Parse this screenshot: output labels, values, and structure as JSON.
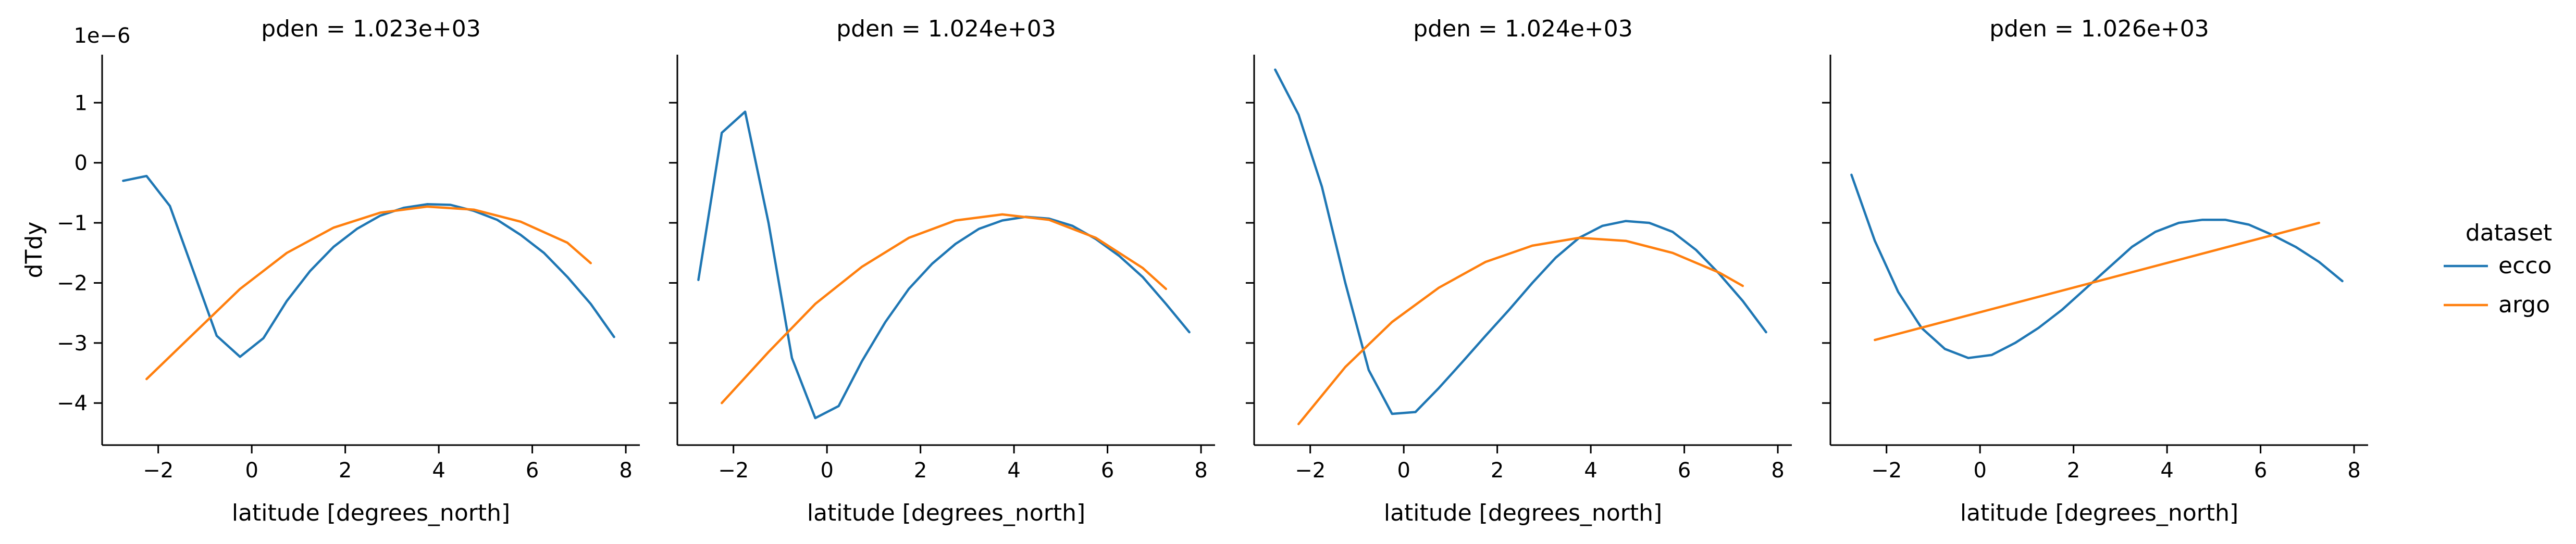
{
  "chart_data": {
    "type": "line",
    "y_scale_label": "1e−6",
    "ylabel": "dTdy",
    "xlabel": "latitude [degrees_north]",
    "xlim": [
      -3.2,
      8.3
    ],
    "ylim": [
      -4.7,
      1.8
    ],
    "x_ticks": [
      -2,
      0,
      2,
      4,
      6,
      8
    ],
    "y_ticks": [
      1,
      0,
      -1,
      -2,
      -3,
      -4
    ],
    "legend": {
      "title": "dataset",
      "placement": "right",
      "entries": [
        "ecco",
        "argo"
      ]
    },
    "colors": {
      "ecco": "#1f77b4",
      "argo": "#ff7f0e"
    },
    "panels": [
      {
        "title": "pden = 1.023e+03",
        "series": [
          {
            "name": "ecco",
            "x": [
              -2.75,
              -2.25,
              -1.75,
              -1.25,
              -0.75,
              -0.25,
              0.25,
              0.75,
              1.25,
              1.75,
              2.25,
              2.75,
              3.25,
              3.75,
              4.25,
              4.75,
              5.25,
              5.75,
              6.25,
              6.75,
              7.25,
              7.75
            ],
            "y": [
              -0.3,
              -0.22,
              -0.72,
              -1.8,
              -2.88,
              -3.23,
              -2.92,
              -2.3,
              -1.8,
              -1.4,
              -1.1,
              -0.88,
              -0.75,
              -0.69,
              -0.7,
              -0.8,
              -0.95,
              -1.2,
              -1.5,
              -1.9,
              -2.35,
              -2.9
            ]
          },
          {
            "name": "argo",
            "x": [
              -2.25,
              -1.25,
              -0.25,
              0.75,
              1.75,
              2.75,
              3.75,
              4.75,
              5.75,
              6.75,
              7.25
            ],
            "y": [
              -3.6,
              -2.85,
              -2.1,
              -1.5,
              -1.08,
              -0.83,
              -0.73,
              -0.78,
              -0.98,
              -1.33,
              -1.67
            ]
          }
        ]
      },
      {
        "title": "pden = 1.024e+03",
        "series": [
          {
            "name": "ecco",
            "x": [
              -2.75,
              -2.25,
              -1.75,
              -1.25,
              -0.75,
              -0.25,
              0.25,
              0.75,
              1.25,
              1.75,
              2.25,
              2.75,
              3.25,
              3.75,
              4.25,
              4.75,
              5.25,
              5.75,
              6.25,
              6.75,
              7.25,
              7.75
            ],
            "y": [
              -1.95,
              0.5,
              0.85,
              -1.0,
              -3.25,
              -4.25,
              -4.05,
              -3.3,
              -2.65,
              -2.1,
              -1.68,
              -1.35,
              -1.1,
              -0.96,
              -0.9,
              -0.93,
              -1.05,
              -1.27,
              -1.55,
              -1.9,
              -2.35,
              -2.82
            ]
          },
          {
            "name": "argo",
            "x": [
              -2.25,
              -1.25,
              -0.25,
              0.75,
              1.75,
              2.75,
              3.75,
              4.75,
              5.75,
              6.75,
              7.25
            ],
            "y": [
              -4.0,
              -3.15,
              -2.35,
              -1.73,
              -1.25,
              -0.96,
              -0.86,
              -0.95,
              -1.25,
              -1.75,
              -2.1
            ]
          }
        ]
      },
      {
        "title": "pden = 1.024e+03",
        "series": [
          {
            "name": "ecco",
            "x": [
              -2.75,
              -2.25,
              -1.75,
              -1.25,
              -0.75,
              -0.25,
              0.25,
              0.75,
              1.25,
              1.75,
              2.25,
              2.75,
              3.25,
              3.75,
              4.25,
              4.75,
              5.25,
              5.75,
              6.25,
              6.75,
              7.25,
              7.75
            ],
            "y": [
              1.55,
              0.8,
              -0.4,
              -2.0,
              -3.45,
              -4.18,
              -4.15,
              -3.75,
              -3.32,
              -2.88,
              -2.45,
              -2.0,
              -1.58,
              -1.25,
              -1.05,
              -0.97,
              -1.0,
              -1.15,
              -1.45,
              -1.85,
              -2.3,
              -2.82
            ]
          },
          {
            "name": "argo",
            "x": [
              -2.25,
              -1.25,
              -0.25,
              0.75,
              1.75,
              2.75,
              3.75,
              4.75,
              5.75,
              6.75,
              7.25
            ],
            "y": [
              -4.35,
              -3.4,
              -2.65,
              -2.08,
              -1.65,
              -1.38,
              -1.25,
              -1.3,
              -1.5,
              -1.83,
              -2.05
            ]
          }
        ]
      },
      {
        "title": "pden = 1.026e+03",
        "series": [
          {
            "name": "ecco",
            "x": [
              -2.75,
              -2.25,
              -1.75,
              -1.25,
              -0.75,
              -0.25,
              0.25,
              0.75,
              1.25,
              1.75,
              2.25,
              2.75,
              3.25,
              3.75,
              4.25,
              4.75,
              5.25,
              5.75,
              6.25,
              6.75,
              7.25,
              7.75
            ],
            "y": [
              -0.2,
              -1.3,
              -2.15,
              -2.75,
              -3.1,
              -3.25,
              -3.2,
              -3.0,
              -2.75,
              -2.45,
              -2.1,
              -1.75,
              -1.4,
              -1.15,
              -1.0,
              -0.95,
              -0.95,
              -1.03,
              -1.2,
              -1.4,
              -1.65,
              -1.97
            ]
          },
          {
            "name": "argo",
            "x": [
              -2.25,
              7.25
            ],
            "y": [
              -2.95,
              -1.0
            ]
          }
        ]
      }
    ]
  }
}
